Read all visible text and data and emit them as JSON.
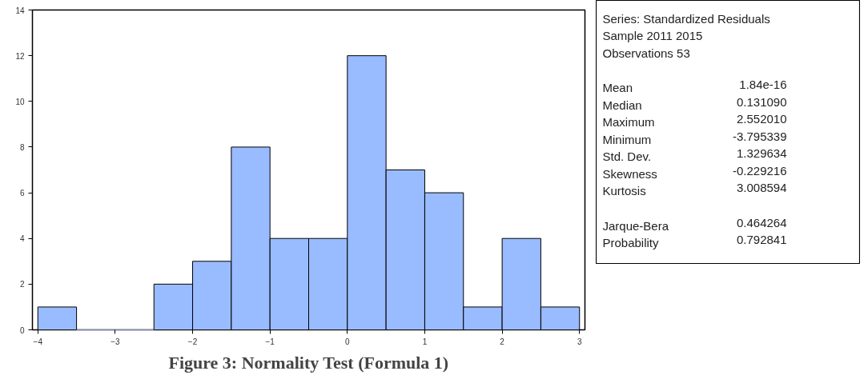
{
  "chart_data": {
    "type": "histogram",
    "title": "Figure 3: Normality Test (Formula 1)",
    "bins": [
      -4,
      -3.5,
      -3,
      -2.5,
      -2,
      -1.5,
      -1,
      -0.5,
      0,
      0.5,
      1,
      1.5,
      2,
      2.5,
      3
    ],
    "values": [
      1,
      0,
      0,
      2,
      3,
      8,
      4,
      4,
      12,
      7,
      6,
      1,
      4,
      1
    ],
    "color": "#99bbff",
    "xlim": [
      -4.07,
      3.07
    ],
    "ylim": [
      0,
      14
    ],
    "xticks": [
      -4,
      -3,
      -2,
      -1,
      0,
      1,
      2,
      3
    ],
    "yticks": [
      0,
      2,
      4,
      6,
      8,
      10,
      12,
      14
    ],
    "grid": false,
    "annotations": [
      "Series: Standardized Residuals",
      "Sample 2011 2015",
      "Observations 53",
      "Mean 1.84e-16",
      "Median 0.131090",
      "Maximum 2.552010",
      "Minimum -3.795339",
      "Std. Dev. 1.329634",
      "Skewness -0.229216",
      "Kurtosis 3.008594",
      "Jarque-Bera 0.464264",
      "Probability 0.792841"
    ]
  }
}
